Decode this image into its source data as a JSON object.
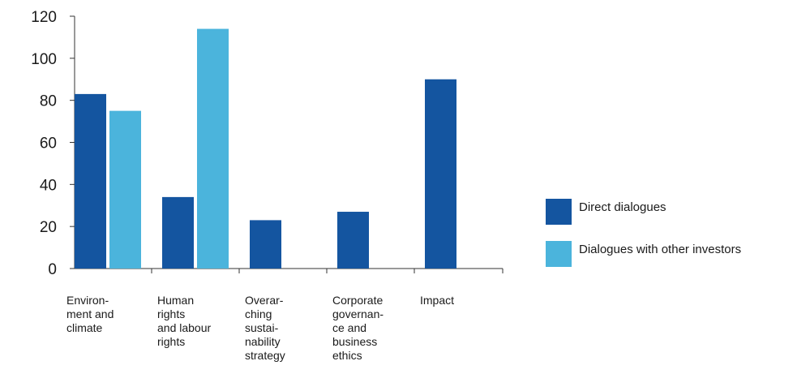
{
  "chart_data": {
    "type": "bar",
    "categories": [
      [
        "Environ-",
        "ment and",
        "climate"
      ],
      [
        "Human",
        "rights",
        "and labour",
        "rights"
      ],
      [
        "Overar-",
        "ching",
        "sustai-",
        "nability",
        "strategy"
      ],
      [
        "Corporate",
        "governan-",
        "ce and",
        "business",
        "ethics"
      ],
      [
        "Impact"
      ]
    ],
    "series": [
      {
        "name": "Direct dialogues",
        "color": "#1455a0",
        "values": [
          83,
          34,
          23,
          27,
          90
        ]
      },
      {
        "name": "Dialogues with other investors",
        "color": "#4bb4dc",
        "values": [
          75,
          114,
          null,
          null,
          null
        ]
      }
    ],
    "yticks": [
      0,
      20,
      40,
      60,
      80,
      100,
      120
    ],
    "ylim": [
      0,
      120
    ],
    "xlabel": "",
    "ylabel": "",
    "title": "",
    "grid": false,
    "legend_position": "right"
  }
}
